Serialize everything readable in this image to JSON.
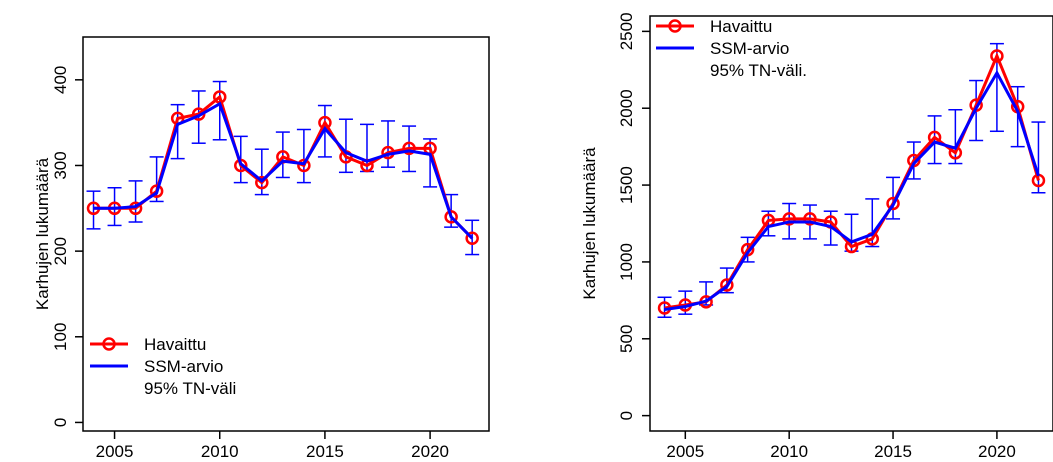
{
  "colors": {
    "observed": "#ff0000",
    "ssm": "#0000ff",
    "ci": "#0000ff",
    "axis": "#000000"
  },
  "chart_data": [
    {
      "type": "line",
      "ylabel": "Karhujen lukumäärä",
      "xlabel": "",
      "xlim": [
        2003.5,
        2022.8
      ],
      "ylim": [
        -10,
        450
      ],
      "xticks": [
        2005,
        2010,
        2015,
        2020
      ],
      "yticks": [
        0,
        100,
        200,
        300,
        400
      ],
      "legend_position": "bottom-left",
      "legend": {
        "observed": "Havaittu",
        "ssm": "SSM-arvio",
        "ci": "95% TN-väli"
      },
      "x": [
        2004,
        2005,
        2006,
        2007,
        2008,
        2009,
        2010,
        2011,
        2012,
        2013,
        2014,
        2015,
        2016,
        2017,
        2018,
        2019,
        2020,
        2021,
        2022
      ],
      "series": [
        {
          "key": "observed",
          "values": [
            250,
            250,
            250,
            270,
            355,
            360,
            380,
            300,
            280,
            310,
            300,
            350,
            310,
            300,
            315,
            320,
            320,
            240,
            215
          ]
        },
        {
          "key": "ssm",
          "values": [
            250,
            250,
            252,
            268,
            348,
            358,
            372,
            302,
            282,
            305,
            302,
            343,
            315,
            305,
            313,
            317,
            313,
            240,
            215
          ]
        }
      ],
      "ci_lower": [
        226,
        230,
        234,
        258,
        308,
        326,
        330,
        280,
        266,
        286,
        280,
        310,
        292,
        293,
        298,
        293,
        275,
        228,
        196
      ],
      "ci_upper": [
        270,
        274,
        282,
        310,
        371,
        387,
        398,
        334,
        319,
        339,
        342,
        370,
        354,
        348,
        352,
        346,
        331,
        266,
        236
      ]
    },
    {
      "type": "line",
      "ylabel": "Karhujen lukumäärä",
      "xlabel": "",
      "xlim": [
        2003.3,
        2022.7
      ],
      "ylim": [
        -100,
        2600
      ],
      "xticks": [
        2005,
        2010,
        2015,
        2020
      ],
      "yticks": [
        0,
        500,
        1000,
        1500,
        2000,
        2500
      ],
      "legend_position": "top-left",
      "legend": {
        "observed": "Havaittu",
        "ssm": "SSM-arvio",
        "ci": "95% TN-väli."
      },
      "x": [
        2004,
        2005,
        2006,
        2007,
        2008,
        2009,
        2010,
        2011,
        2012,
        2013,
        2014,
        2015,
        2016,
        2017,
        2018,
        2019,
        2020,
        2021,
        2022
      ],
      "series": [
        {
          "key": "observed",
          "values": [
            700,
            720,
            740,
            850,
            1080,
            1270,
            1280,
            1280,
            1260,
            1100,
            1150,
            1380,
            1660,
            1810,
            1710,
            2020,
            2340,
            2010,
            1530
          ]
        },
        {
          "key": "ssm",
          "values": [
            690,
            710,
            745,
            840,
            1060,
            1230,
            1260,
            1260,
            1230,
            1130,
            1180,
            1370,
            1640,
            1780,
            1740,
            2000,
            2230,
            1980,
            1560
          ]
        }
      ],
      "ci_lower": [
        640,
        660,
        720,
        800,
        1000,
        1170,
        1150,
        1150,
        1110,
        1070,
        1100,
        1280,
        1540,
        1640,
        1640,
        1790,
        1850,
        1750,
        1450
      ],
      "ci_upper": [
        770,
        810,
        870,
        960,
        1160,
        1330,
        1380,
        1370,
        1330,
        1310,
        1410,
        1550,
        1780,
        1950,
        1990,
        2180,
        2420,
        2140,
        1910
      ]
    }
  ]
}
